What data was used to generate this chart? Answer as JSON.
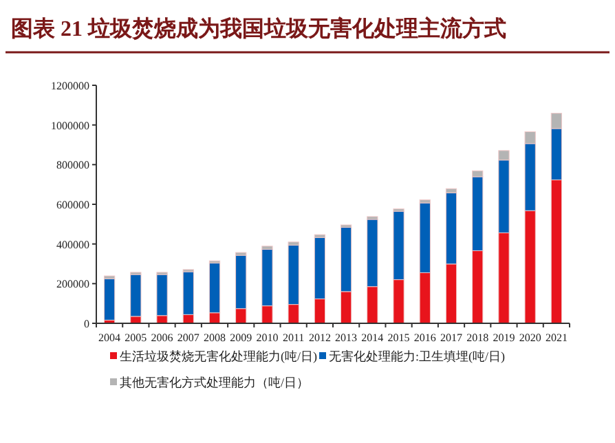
{
  "chart_data": {
    "type": "bar",
    "stacked": true,
    "title": "图表 21    垃圾焚烧成为我国垃圾无害化处理主流方式",
    "categories": [
      "2004",
      "2005",
      "2006",
      "2007",
      "2008",
      "2009",
      "2010",
      "2011",
      "2012",
      "2013",
      "2014",
      "2015",
      "2016",
      "2017",
      "2018",
      "2019",
      "2020",
      "2021"
    ],
    "series": [
      {
        "name": "生活垃圾焚烧无害化处理能力(吨/日)",
        "color": "#e8141c",
        "values": [
          16000,
          35000,
          39000,
          44000,
          53000,
          74000,
          88000,
          95000,
          123000,
          160000,
          185000,
          220000,
          255000,
          299000,
          366000,
          456000,
          568000,
          723000
        ]
      },
      {
        "name": "无害化处理能力:卫生填埋(吨/日)",
        "color": "#0060b8",
        "values": [
          209000,
          211000,
          207000,
          216000,
          251000,
          269000,
          285000,
          299000,
          310000,
          324000,
          339000,
          345000,
          352000,
          359000,
          373000,
          367000,
          338000,
          259000
        ]
      },
      {
        "name": "其他无害化方式处理能力（吨/日）",
        "color": "#b4b4b4",
        "values": [
          14000,
          11000,
          11000,
          11000,
          11000,
          14000,
          16000,
          16000,
          14000,
          12000,
          14000,
          12000,
          16000,
          21000,
          30000,
          48000,
          60000,
          77000
        ]
      }
    ],
    "ylim": [
      0,
      1200000
    ],
    "yticks": [
      0,
      200000,
      400000,
      600000,
      800000,
      1000000,
      1200000
    ],
    "grid": false,
    "legend": "bottom"
  }
}
